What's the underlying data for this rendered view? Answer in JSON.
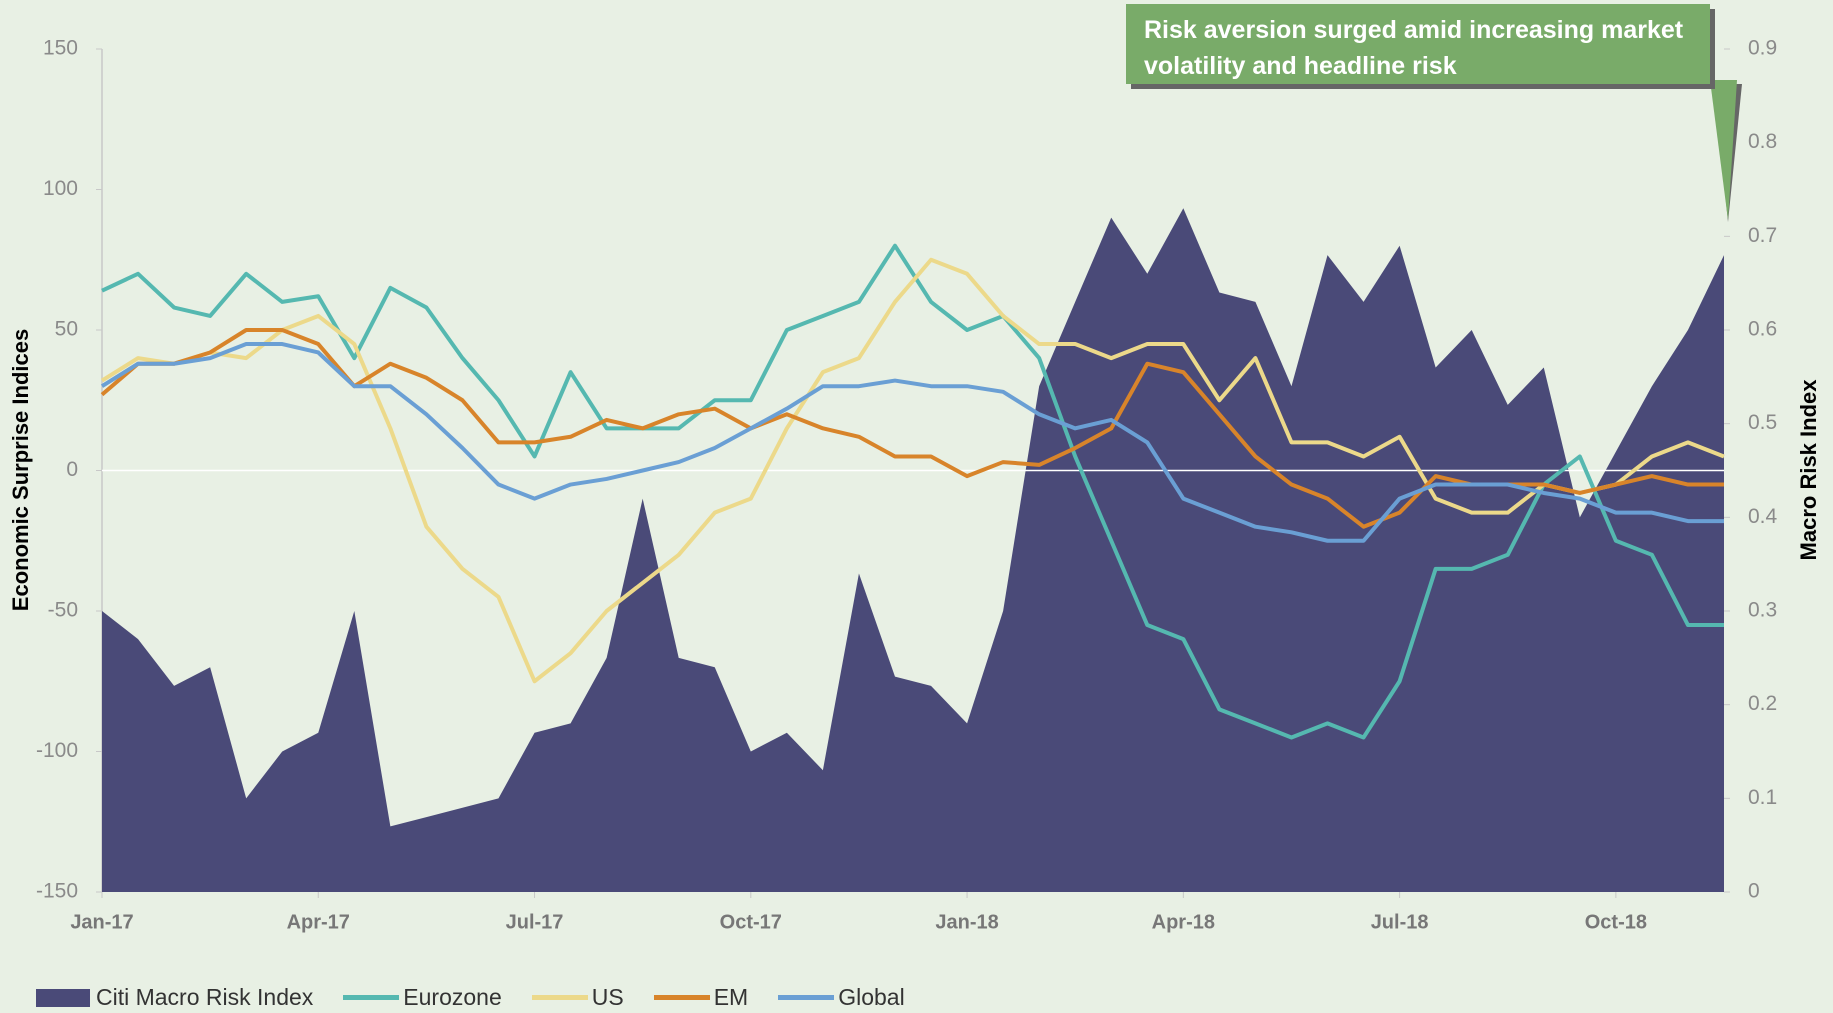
{
  "chart_data": {
    "type": "line",
    "annotation": "Risk aversion surged amid increasing market volatility and headline risk",
    "ylabel": "Economic Surprise Indices",
    "y2label": "Macro Risk Index",
    "categories": [
      "Jan-17",
      null,
      null,
      null,
      null,
      null,
      "Apr-17",
      null,
      null,
      null,
      null,
      null,
      "Jul-17",
      null,
      null,
      null,
      null,
      null,
      "Oct-17",
      null,
      null,
      null,
      null,
      null,
      "Jan-18",
      null,
      null,
      null,
      null,
      null,
      "Apr-18",
      null,
      null,
      null,
      null,
      null,
      "Jul-18",
      null,
      null,
      null,
      null,
      null,
      "Oct-18",
      null,
      null,
      null
    ],
    "ylim": [
      -150,
      150
    ],
    "yticks": [
      -150,
      -100,
      -50,
      0,
      50,
      100,
      150
    ],
    "y2lim": [
      0,
      0.9
    ],
    "y2ticks": [
      0,
      0.1,
      0.2,
      0.3,
      0.4,
      0.5,
      0.6,
      0.7,
      0.8,
      0.9
    ],
    "legend": "bottom",
    "series": [
      {
        "name": "Citi Macro Risk Index",
        "style": "area",
        "axis": "y2",
        "color": "#4a4a78",
        "values": [
          0.3,
          0.27,
          0.22,
          0.24,
          0.1,
          0.15,
          0.17,
          0.3,
          0.07,
          0.08,
          0.09,
          0.1,
          0.17,
          0.18,
          0.25,
          0.42,
          0.25,
          0.24,
          0.15,
          0.17,
          0.13,
          0.34,
          0.23,
          0.22,
          0.18,
          0.3,
          0.54,
          0.63,
          0.72,
          0.66,
          0.73,
          0.64,
          0.63,
          0.54,
          0.68,
          0.63,
          0.69,
          0.56,
          0.6,
          0.52,
          0.56,
          0.4,
          0.47,
          0.54,
          0.6,
          0.68
        ]
      },
      {
        "name": "Eurozone",
        "style": "line",
        "color": "#55b8b0",
        "values": [
          64,
          70,
          58,
          55,
          70,
          60,
          62,
          40,
          65,
          58,
          40,
          25,
          5,
          35,
          15,
          15,
          15,
          25,
          25,
          50,
          55,
          60,
          80,
          60,
          50,
          55,
          40,
          5,
          -25,
          -55,
          -60,
          -85,
          -90,
          -95,
          -90,
          -95,
          -75,
          -35,
          -35,
          -30,
          -5,
          5,
          -25,
          -30,
          -55,
          -55
        ]
      },
      {
        "name": "US",
        "style": "line",
        "color": "#ecd98a",
        "values": [
          32,
          40,
          38,
          42,
          40,
          50,
          55,
          45,
          15,
          -20,
          -35,
          -45,
          -75,
          -65,
          -50,
          -40,
          -30,
          -15,
          -10,
          15,
          35,
          40,
          60,
          75,
          70,
          55,
          45,
          45,
          40,
          45,
          45,
          25,
          40,
          10,
          10,
          5,
          12,
          -10,
          -15,
          -15,
          -5,
          -8,
          -5,
          5,
          10,
          5
        ]
      },
      {
        "name": "EM",
        "style": "line",
        "color": "#d8842a",
        "values": [
          27,
          38,
          38,
          42,
          50,
          50,
          45,
          30,
          38,
          33,
          25,
          10,
          10,
          12,
          18,
          15,
          20,
          22,
          15,
          20,
          15,
          12,
          5,
          5,
          -2,
          3,
          2,
          8,
          15,
          38,
          35,
          20,
          5,
          -5,
          -10,
          -20,
          -15,
          -2,
          -5,
          -5,
          -5,
          -8,
          -5,
          -2,
          -5,
          -5
        ]
      },
      {
        "name": "Global",
        "style": "line",
        "color": "#6a9fd4",
        "values": [
          30,
          38,
          38,
          40,
          45,
          45,
          42,
          30,
          30,
          20,
          8,
          -5,
          -10,
          -5,
          -3,
          0,
          3,
          8,
          15,
          22,
          30,
          30,
          32,
          30,
          30,
          28,
          20,
          15,
          18,
          10,
          -10,
          -15,
          -20,
          -22,
          -25,
          -25,
          -10,
          -5,
          -5,
          -5,
          -8,
          -10,
          -15,
          -15,
          -18,
          -18
        ]
      }
    ]
  }
}
